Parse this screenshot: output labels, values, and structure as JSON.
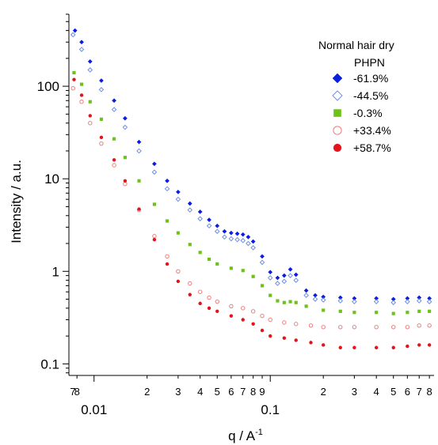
{
  "chart_data": {
    "type": "scatter",
    "xlabel": "q / A",
    "xlabel_superscript": "-1",
    "ylabel": "Intensity / a.u.",
    "x_scale": "log",
    "y_scale": "log",
    "xlim": [
      0.0072,
      0.85
    ],
    "ylim": [
      0.075,
      600
    ],
    "grid": false,
    "legend_placement": "top-right",
    "legend": {
      "title_line1": "Normal hair dry",
      "title_line2": "PHPN"
    },
    "x_tick_labels_major": [
      "0.01",
      "0.1"
    ],
    "x_tick_labels_minor": [
      "7",
      "8",
      "2",
      "3",
      "4",
      "5",
      "6",
      "7",
      "8",
      "9",
      "2",
      "3",
      "4",
      "5",
      "6",
      "7",
      "8"
    ],
    "y_tick_labels": [
      "0.1",
      "1",
      "10",
      "100"
    ],
    "series": [
      {
        "name": "-61.9%",
        "marker": "diamond-filled",
        "color": "#0a1ee0",
        "points": [
          [
            0.0078,
            400
          ],
          [
            0.0085,
            300
          ],
          [
            0.0095,
            185
          ],
          [
            0.011,
            115
          ],
          [
            0.013,
            70
          ],
          [
            0.015,
            45
          ],
          [
            0.018,
            25
          ],
          [
            0.022,
            14.5
          ],
          [
            0.026,
            9.5
          ],
          [
            0.03,
            7.2
          ],
          [
            0.035,
            5.4
          ],
          [
            0.04,
            4.4
          ],
          [
            0.045,
            3.6
          ],
          [
            0.05,
            3.1
          ],
          [
            0.055,
            2.7
          ],
          [
            0.06,
            2.6
          ],
          [
            0.065,
            2.55
          ],
          [
            0.07,
            2.5
          ],
          [
            0.075,
            2.35
          ],
          [
            0.08,
            2.1
          ],
          [
            0.09,
            1.45
          ],
          [
            0.1,
            0.98
          ],
          [
            0.11,
            0.85
          ],
          [
            0.12,
            0.9
          ],
          [
            0.13,
            1.05
          ],
          [
            0.14,
            0.92
          ],
          [
            0.16,
            0.62
          ],
          [
            0.18,
            0.55
          ],
          [
            0.2,
            0.53
          ],
          [
            0.25,
            0.52
          ],
          [
            0.3,
            0.51
          ],
          [
            0.4,
            0.51
          ],
          [
            0.5,
            0.5
          ],
          [
            0.6,
            0.51
          ],
          [
            0.7,
            0.52
          ],
          [
            0.8,
            0.51
          ]
        ]
      },
      {
        "name": "-44.5%",
        "marker": "diamond-open",
        "color": "#6f8fe6",
        "points": [
          [
            0.0076,
            360
          ],
          [
            0.0085,
            250
          ],
          [
            0.0095,
            150
          ],
          [
            0.011,
            92
          ],
          [
            0.013,
            56
          ],
          [
            0.015,
            36
          ],
          [
            0.018,
            20
          ],
          [
            0.022,
            11.8
          ],
          [
            0.026,
            7.8
          ],
          [
            0.03,
            6
          ],
          [
            0.035,
            4.6
          ],
          [
            0.04,
            3.7
          ],
          [
            0.045,
            3.1
          ],
          [
            0.05,
            2.7
          ],
          [
            0.055,
            2.35
          ],
          [
            0.06,
            2.25
          ],
          [
            0.065,
            2.2
          ],
          [
            0.07,
            2.15
          ],
          [
            0.075,
            2.0
          ],
          [
            0.08,
            1.8
          ],
          [
            0.09,
            1.25
          ],
          [
            0.1,
            0.85
          ],
          [
            0.11,
            0.74
          ],
          [
            0.12,
            0.78
          ],
          [
            0.13,
            0.9
          ],
          [
            0.14,
            0.8
          ],
          [
            0.16,
            0.55
          ],
          [
            0.18,
            0.5
          ],
          [
            0.2,
            0.49
          ],
          [
            0.25,
            0.48
          ],
          [
            0.3,
            0.47
          ],
          [
            0.4,
            0.47
          ],
          [
            0.5,
            0.46
          ],
          [
            0.6,
            0.47
          ],
          [
            0.7,
            0.48
          ],
          [
            0.8,
            0.47
          ]
        ]
      },
      {
        "name": "-0.3%",
        "marker": "square-filled",
        "color": "#6cc219",
        "points": [
          [
            0.0077,
            140
          ],
          [
            0.0085,
            105
          ],
          [
            0.0095,
            68
          ],
          [
            0.011,
            44
          ],
          [
            0.013,
            27
          ],
          [
            0.015,
            17
          ],
          [
            0.018,
            9.5
          ],
          [
            0.022,
            5.3
          ],
          [
            0.026,
            3.5
          ],
          [
            0.03,
            2.6
          ],
          [
            0.035,
            1.95
          ],
          [
            0.04,
            1.6
          ],
          [
            0.045,
            1.35
          ],
          [
            0.05,
            1.2
          ],
          [
            0.06,
            1.08
          ],
          [
            0.07,
            1.02
          ],
          [
            0.08,
            0.88
          ],
          [
            0.09,
            0.7
          ],
          [
            0.1,
            0.55
          ],
          [
            0.11,
            0.48
          ],
          [
            0.12,
            0.46
          ],
          [
            0.13,
            0.47
          ],
          [
            0.14,
            0.46
          ],
          [
            0.16,
            0.42
          ],
          [
            0.2,
            0.38
          ],
          [
            0.25,
            0.37
          ],
          [
            0.3,
            0.36
          ],
          [
            0.4,
            0.36
          ],
          [
            0.5,
            0.35
          ],
          [
            0.6,
            0.36
          ],
          [
            0.7,
            0.37
          ],
          [
            0.8,
            0.37
          ]
        ]
      },
      {
        "name": "+33.4%",
        "marker": "circle-open",
        "color": "#ee7e7e",
        "points": [
          [
            0.0076,
            95
          ],
          [
            0.0085,
            68
          ],
          [
            0.0095,
            40
          ],
          [
            0.011,
            24
          ],
          [
            0.013,
            14
          ],
          [
            0.015,
            8.8
          ],
          [
            0.018,
            4.6
          ],
          [
            0.022,
            2.4
          ],
          [
            0.026,
            1.45
          ],
          [
            0.03,
            1.0
          ],
          [
            0.035,
            0.74
          ],
          [
            0.04,
            0.6
          ],
          [
            0.045,
            0.52
          ],
          [
            0.05,
            0.47
          ],
          [
            0.06,
            0.42
          ],
          [
            0.07,
            0.4
          ],
          [
            0.08,
            0.37
          ],
          [
            0.09,
            0.33
          ],
          [
            0.1,
            0.3
          ],
          [
            0.12,
            0.28
          ],
          [
            0.14,
            0.27
          ],
          [
            0.17,
            0.26
          ],
          [
            0.2,
            0.25
          ],
          [
            0.25,
            0.25
          ],
          [
            0.3,
            0.25
          ],
          [
            0.4,
            0.25
          ],
          [
            0.5,
            0.25
          ],
          [
            0.6,
            0.25
          ],
          [
            0.7,
            0.26
          ],
          [
            0.8,
            0.26
          ]
        ]
      },
      {
        "name": "+58.7%",
        "marker": "circle-filled",
        "color": "#e3141c",
        "points": [
          [
            0.0077,
            118
          ],
          [
            0.0085,
            80
          ],
          [
            0.0095,
            48
          ],
          [
            0.011,
            28
          ],
          [
            0.013,
            16
          ],
          [
            0.015,
            9.5
          ],
          [
            0.018,
            4.7
          ],
          [
            0.022,
            2.2
          ],
          [
            0.026,
            1.2
          ],
          [
            0.03,
            0.78
          ],
          [
            0.035,
            0.56
          ],
          [
            0.04,
            0.45
          ],
          [
            0.045,
            0.4
          ],
          [
            0.05,
            0.37
          ],
          [
            0.06,
            0.33
          ],
          [
            0.07,
            0.3
          ],
          [
            0.08,
            0.27
          ],
          [
            0.09,
            0.23
          ],
          [
            0.1,
            0.2
          ],
          [
            0.12,
            0.19
          ],
          [
            0.14,
            0.18
          ],
          [
            0.17,
            0.17
          ],
          [
            0.2,
            0.16
          ],
          [
            0.25,
            0.15
          ],
          [
            0.3,
            0.15
          ],
          [
            0.4,
            0.15
          ],
          [
            0.5,
            0.15
          ],
          [
            0.6,
            0.155
          ],
          [
            0.7,
            0.16
          ],
          [
            0.8,
            0.16
          ]
        ]
      }
    ]
  }
}
